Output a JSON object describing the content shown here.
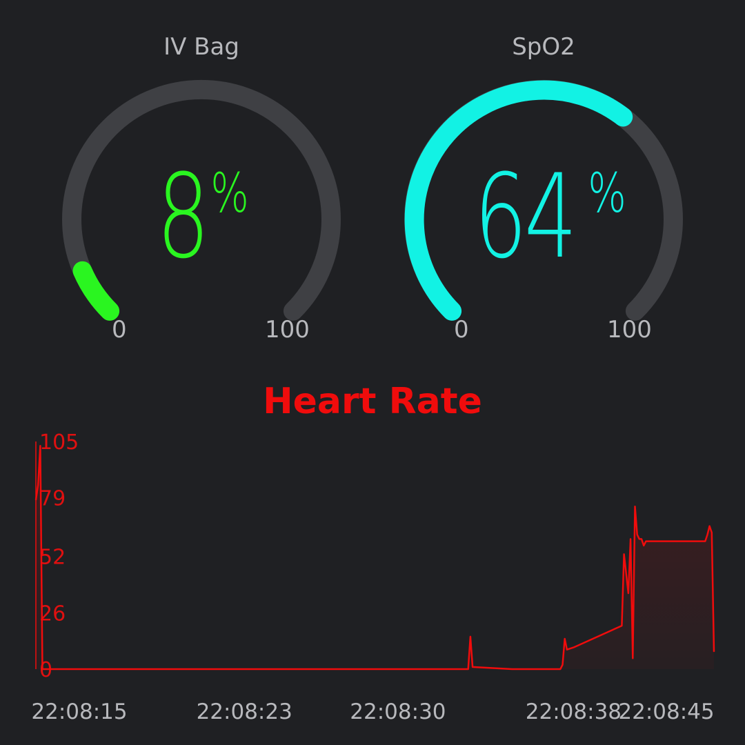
{
  "gauges": [
    {
      "title": "IV Bag",
      "value": "8",
      "unit": "%",
      "min": "0",
      "max": "100",
      "color": "#2af520",
      "fraction": 0.08
    },
    {
      "title": "SpO2",
      "value": "64",
      "unit": "%",
      "min": "0",
      "max": "100",
      "color": "#12f2e4",
      "fraction": 0.64
    }
  ],
  "chart_title": "Heart Rate",
  "colors": {
    "background": "#1f2023",
    "track": "#3f4044",
    "label": "#b8b9bd",
    "chart": "#f00c0c"
  },
  "chart_data": {
    "type": "area",
    "title": "Heart Rate",
    "xlabel": "",
    "ylabel": "",
    "ylim": [
      0,
      105
    ],
    "yticks": [
      "105",
      "79",
      "52",
      "26",
      "0"
    ],
    "xticks": [
      "22:08:15",
      "22:08:23",
      "22:08:30",
      "22:08:38",
      "22:08:45"
    ],
    "grid": false,
    "x": [
      "22:08:13.5",
      "22:08:13.6",
      "22:08:13.7",
      "22:08:13.8",
      "22:08:30.0",
      "22:08:33.2",
      "22:08:33.3",
      "22:08:33.4",
      "22:08:35.2",
      "22:08:35.3",
      "22:08:37.4",
      "22:08:37.5",
      "22:08:37.6",
      "22:08:37.7",
      "22:08:38.0",
      "22:08:40.2",
      "22:08:40.3",
      "22:08:40.5",
      "22:08:40.6",
      "22:08:40.7",
      "22:08:40.8",
      "22:08:40.9",
      "22:08:41.0",
      "22:08:41.1",
      "22:08:41.2",
      "22:08:41.3",
      "22:08:41.4",
      "22:08:44.0",
      "22:08:44.1",
      "22:08:44.2",
      "22:08:44.3",
      "22:08:44.4"
    ],
    "y": [
      78,
      85,
      103,
      0,
      0,
      0,
      15,
      1,
      0,
      0,
      0,
      2,
      14,
      9,
      10,
      20,
      53,
      35,
      60,
      5,
      75,
      62,
      60,
      60,
      57,
      59,
      59,
      59,
      62,
      66,
      63,
      8
    ]
  }
}
